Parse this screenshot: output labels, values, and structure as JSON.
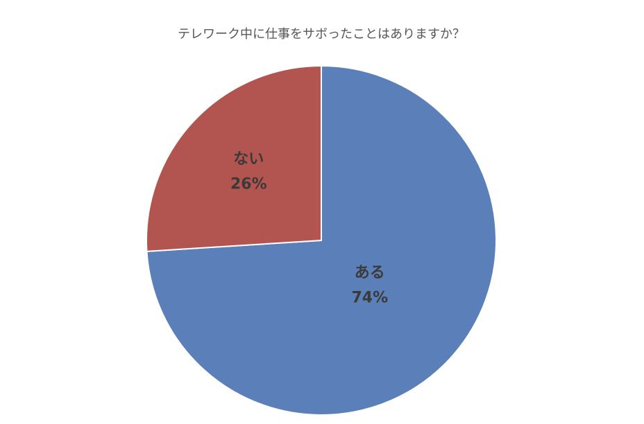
{
  "chart_data": {
    "type": "pie",
    "title": "テレワーク中に仕事をサボったことはありますか？",
    "categories": [
      "ある",
      "ない"
    ],
    "values": [
      74,
      26
    ],
    "value_labels": [
      "74%",
      "26%"
    ],
    "colors": [
      "#5a7fb9",
      "#b2544f"
    ]
  }
}
